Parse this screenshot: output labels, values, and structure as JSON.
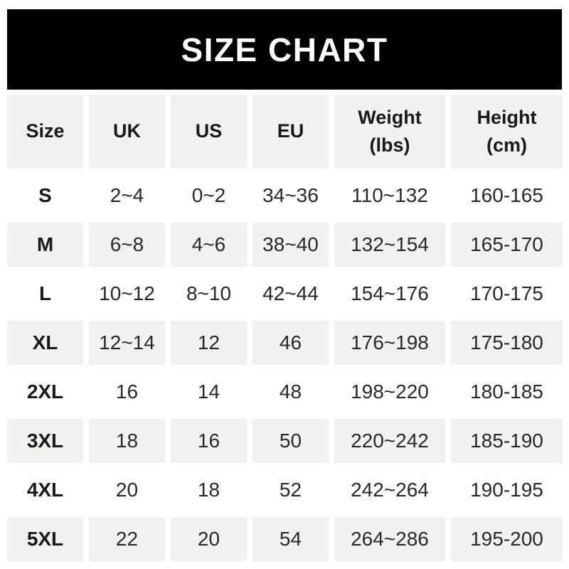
{
  "banner": {
    "title": "SIZE CHART"
  },
  "table": {
    "columns": [
      "Size",
      "UK",
      "US",
      "EU",
      "Weight\n(lbs)",
      "Height\n(cm)"
    ],
    "rows": [
      [
        "S",
        "2~4",
        "0~2",
        "34~36",
        "110~132",
        "160-165"
      ],
      [
        "M",
        "6~8",
        "4~6",
        "38~40",
        "132~154",
        "165-170"
      ],
      [
        "L",
        "10~12",
        "8~10",
        "42~44",
        "154~176",
        "170-175"
      ],
      [
        "XL",
        "12~14",
        "12",
        "46",
        "176~198",
        "175-180"
      ],
      [
        "2XL",
        "16",
        "14",
        "48",
        "198~220",
        "180-185"
      ],
      [
        "3XL",
        "18",
        "16",
        "50",
        "220~242",
        "185-190"
      ],
      [
        "4XL",
        "20",
        "18",
        "52",
        "242~264",
        "190-195"
      ],
      [
        "5XL",
        "22",
        "20",
        "54",
        "264~286",
        "195-200"
      ]
    ]
  },
  "chart_data": {
    "type": "table",
    "title": "SIZE CHART",
    "columns": [
      "Size",
      "UK",
      "US",
      "EU",
      "Weight (lbs)",
      "Height (cm)"
    ],
    "rows": [
      [
        "S",
        "2~4",
        "0~2",
        "34~36",
        "110~132",
        "160-165"
      ],
      [
        "M",
        "6~8",
        "4~6",
        "38~40",
        "132~154",
        "165-170"
      ],
      [
        "L",
        "10~12",
        "8~10",
        "42~44",
        "154~176",
        "170-175"
      ],
      [
        "XL",
        "12~14",
        "12",
        "46",
        "176~198",
        "175-180"
      ],
      [
        "2XL",
        "16",
        "14",
        "48",
        "198~220",
        "180-185"
      ],
      [
        "3XL",
        "18",
        "16",
        "50",
        "220~242",
        "185-190"
      ],
      [
        "4XL",
        "20",
        "18",
        "52",
        "242~264",
        "190-195"
      ],
      [
        "5XL",
        "22",
        "20",
        "54",
        "264~286",
        "195-200"
      ]
    ],
    "layout": {
      "header_row_shaded": true,
      "alternating_row_shading": "even data rows shaded starting with M",
      "grid_lines": "none, white gaps between cells"
    }
  },
  "colors": {
    "banner_bg": "#000000",
    "banner_text": "#ffffff",
    "row_shade": "#f1f1f0",
    "page_bg": "#ffffff",
    "text": "#26282c",
    "bold_text": "#17191d"
  }
}
